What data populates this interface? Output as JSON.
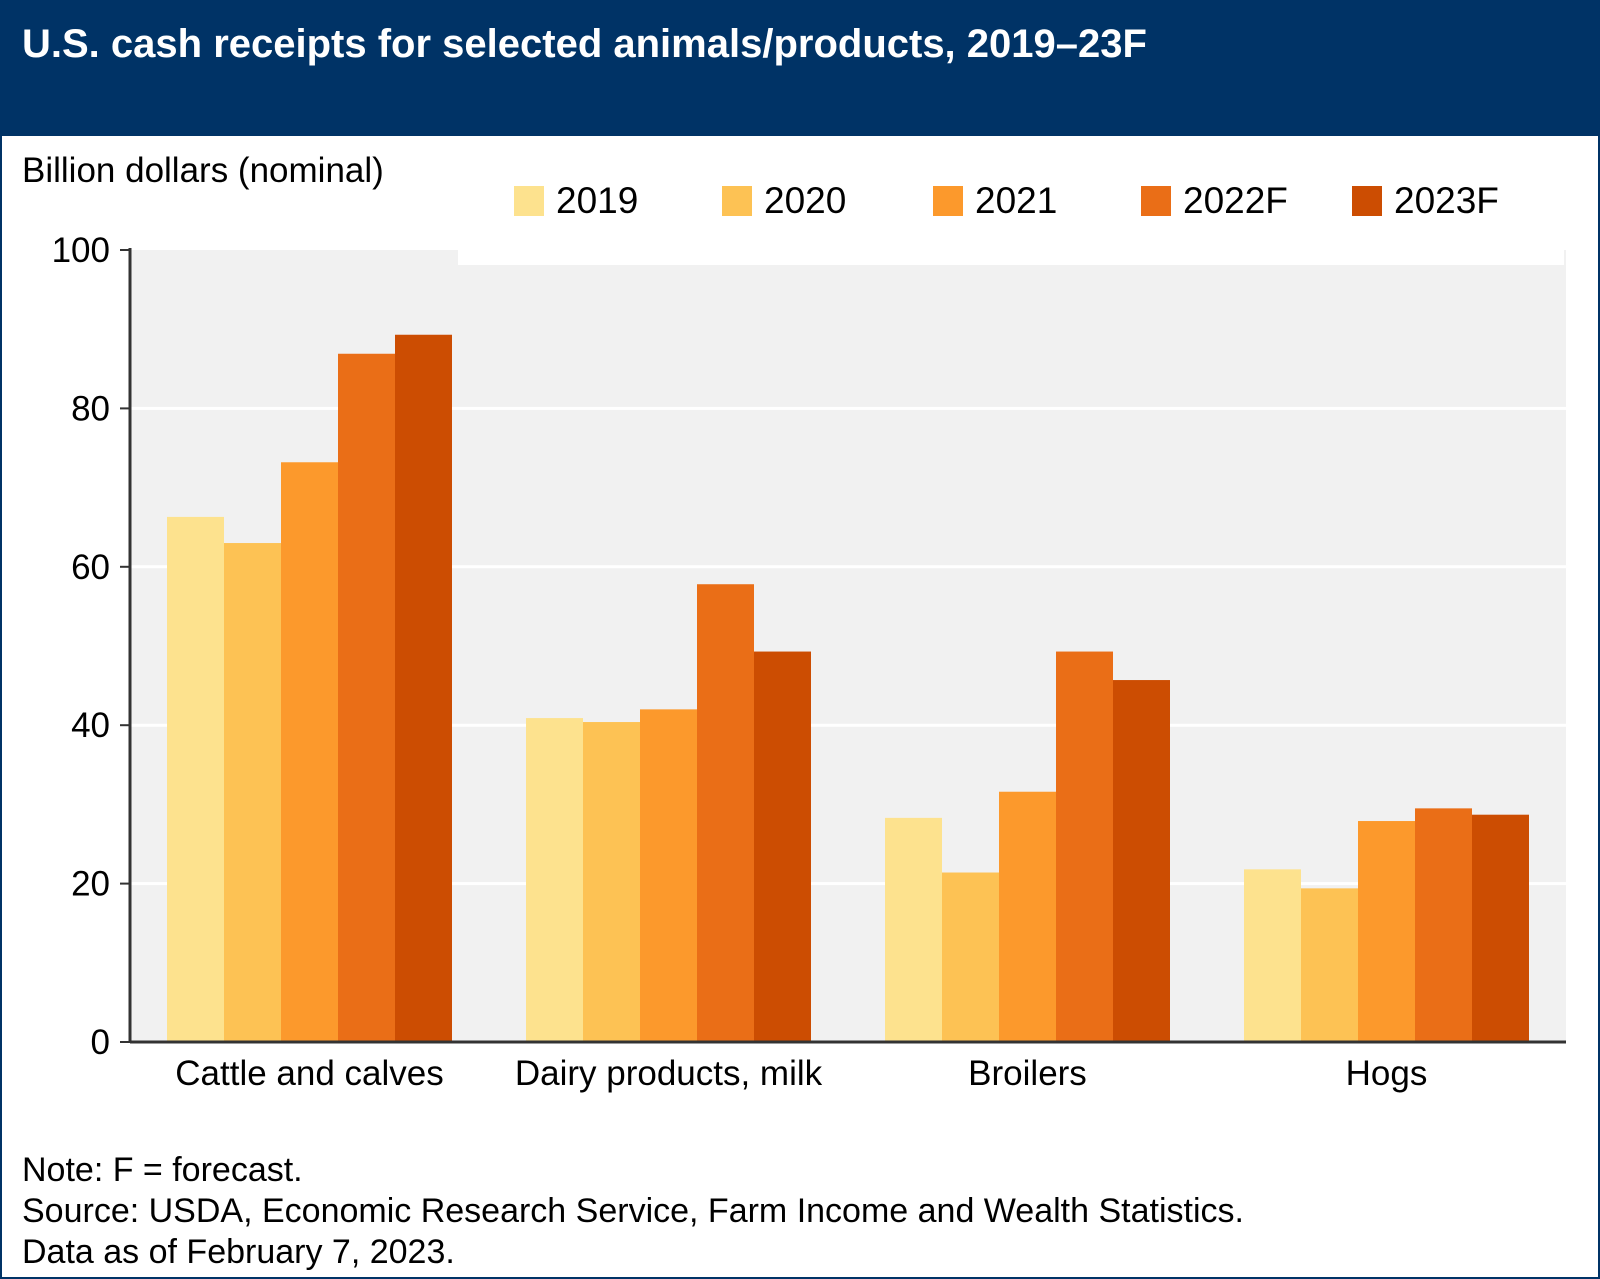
{
  "title": "U.S. cash receipts for selected animals/products, 2019–23F",
  "notes": {
    "note": "Note: F = forecast.",
    "source": "Source: USDA, Economic Research Service, Farm Income and Wealth Statistics.",
    "date": "Data as of February 7, 2023."
  },
  "colors": {
    "header": "#003366",
    "plot_background": "#f1f1f1",
    "gridline": "#ffffff",
    "axis": "#333333"
  },
  "chart_data": {
    "type": "bar",
    "title": "U.S. cash receipts for selected animals/products, 2019–23F",
    "ylabel": "Billion dollars (nominal)",
    "xlabel": "",
    "ylim": [
      0,
      100
    ],
    "yticks": [
      0,
      20,
      40,
      60,
      80,
      100
    ],
    "grid": true,
    "legend_position": "top",
    "categories": [
      "Cattle and calves",
      "Dairy products, milk",
      "Broilers",
      "Hogs"
    ],
    "series": [
      {
        "name": "2019",
        "color": "#fde28e",
        "values": [
          66.3,
          40.9,
          28.3,
          21.8
        ]
      },
      {
        "name": "2020",
        "color": "#fdc254",
        "values": [
          63.0,
          40.4,
          21.4,
          19.4
        ]
      },
      {
        "name": "2021",
        "color": "#fc992c",
        "values": [
          73.2,
          42.0,
          31.6,
          27.9
        ]
      },
      {
        "name": "2022F",
        "color": "#ea6e17",
        "values": [
          86.9,
          57.8,
          49.3,
          29.5
        ]
      },
      {
        "name": "2023F",
        "color": "#cc4d02",
        "values": [
          89.3,
          49.3,
          45.7,
          28.7
        ]
      }
    ]
  }
}
